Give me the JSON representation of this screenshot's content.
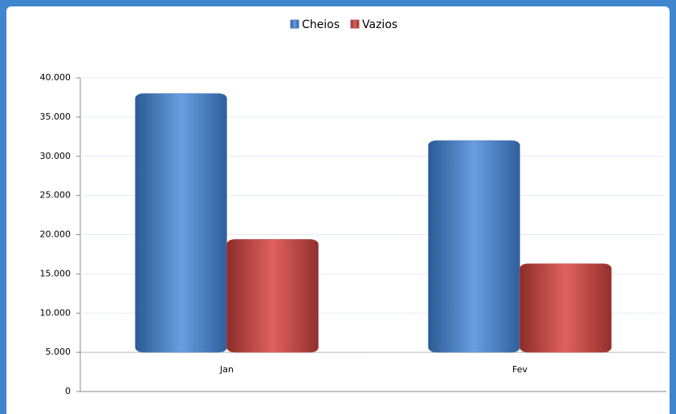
{
  "chart_data": {
    "type": "bar",
    "categories": [
      "Jan",
      "Fev"
    ],
    "series": [
      {
        "name": "Cheios",
        "color": "#4f81bd",
        "values": [
          38000,
          32000
        ]
      },
      {
        "name": "Vazios",
        "color": "#c0504d",
        "values": [
          19400,
          16300
        ]
      }
    ],
    "ylim": [
      0,
      40000
    ],
    "yticks": [
      0,
      {
        "value": 5000,
        "label": "5.000"
      },
      {
        "value": 10000,
        "label": "10.000"
      },
      {
        "value": 15000,
        "label": "15.000"
      },
      {
        "value": 20000,
        "label": "20.000"
      },
      {
        "value": 25000,
        "label": "25.000"
      },
      {
        "value": 30000,
        "label": "30.000"
      },
      {
        "value": 35000,
        "label": "35.000"
      },
      {
        "value": 40000,
        "label": "40.000"
      }
    ],
    "x_axis_crosses": 5000,
    "grid": true,
    "legend": "top"
  }
}
